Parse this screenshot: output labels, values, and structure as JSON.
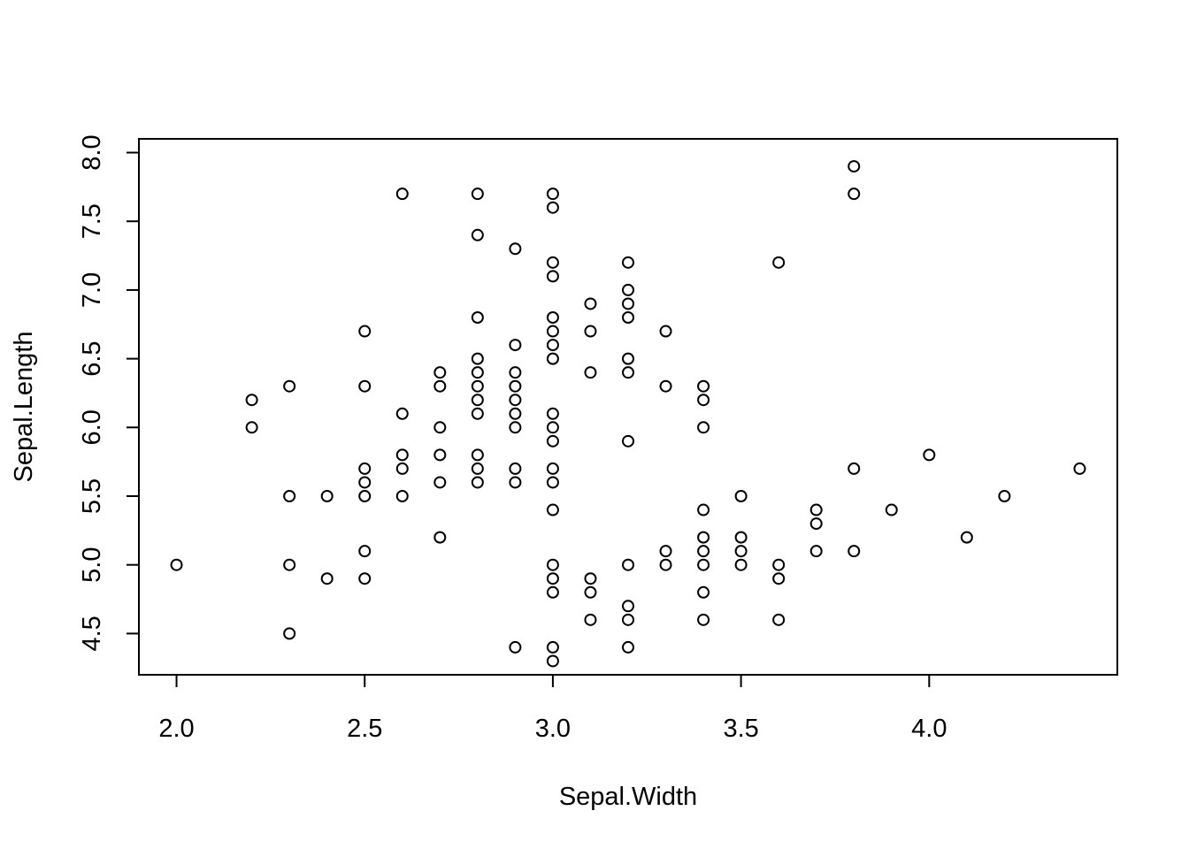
{
  "chart_data": {
    "type": "scatter",
    "title": "",
    "xlabel": "Sepal.Width",
    "ylabel": "Sepal.Length",
    "xlim": [
      1.9,
      4.5
    ],
    "ylim": [
      4.2,
      8.1
    ],
    "x_ticks": [
      "2.0",
      "2.5",
      "3.0",
      "3.5",
      "4.0"
    ],
    "y_ticks": [
      "4.5",
      "5.0",
      "5.5",
      "6.0",
      "6.5",
      "7.0",
      "7.5",
      "8.0"
    ],
    "grid": false,
    "marker": "open-circle",
    "color": "#000000",
    "points": [
      [
        2.0,
        5.0
      ],
      [
        2.2,
        6.2
      ],
      [
        2.2,
        6.0
      ],
      [
        2.3,
        6.3
      ],
      [
        2.3,
        5.5
      ],
      [
        2.3,
        5.0
      ],
      [
        2.3,
        4.5
      ],
      [
        2.4,
        5.5
      ],
      [
        2.4,
        4.9
      ],
      [
        2.5,
        6.7
      ],
      [
        2.5,
        6.3
      ],
      [
        2.5,
        5.7
      ],
      [
        2.5,
        5.6
      ],
      [
        2.5,
        5.5
      ],
      [
        2.5,
        5.1
      ],
      [
        2.5,
        4.9
      ],
      [
        2.6,
        7.7
      ],
      [
        2.6,
        6.1
      ],
      [
        2.6,
        5.8
      ],
      [
        2.6,
        5.7
      ],
      [
        2.6,
        5.5
      ],
      [
        2.7,
        6.4
      ],
      [
        2.7,
        6.3
      ],
      [
        2.7,
        6.0
      ],
      [
        2.7,
        5.8
      ],
      [
        2.7,
        5.6
      ],
      [
        2.7,
        5.2
      ],
      [
        2.8,
        7.7
      ],
      [
        2.8,
        7.4
      ],
      [
        2.8,
        6.8
      ],
      [
        2.8,
        6.5
      ],
      [
        2.8,
        6.4
      ],
      [
        2.8,
        6.3
      ],
      [
        2.8,
        6.2
      ],
      [
        2.8,
        6.1
      ],
      [
        2.8,
        5.8
      ],
      [
        2.8,
        5.7
      ],
      [
        2.8,
        5.6
      ],
      [
        2.9,
        7.3
      ],
      [
        2.9,
        6.6
      ],
      [
        2.9,
        6.4
      ],
      [
        2.9,
        6.3
      ],
      [
        2.9,
        6.2
      ],
      [
        2.9,
        6.1
      ],
      [
        2.9,
        6.0
      ],
      [
        2.9,
        5.7
      ],
      [
        2.9,
        5.6
      ],
      [
        2.9,
        4.4
      ],
      [
        3.0,
        7.7
      ],
      [
        3.0,
        7.6
      ],
      [
        3.0,
        7.2
      ],
      [
        3.0,
        7.1
      ],
      [
        3.0,
        6.8
      ],
      [
        3.0,
        6.7
      ],
      [
        3.0,
        6.6
      ],
      [
        3.0,
        6.5
      ],
      [
        3.0,
        6.1
      ],
      [
        3.0,
        6.0
      ],
      [
        3.0,
        5.9
      ],
      [
        3.0,
        5.7
      ],
      [
        3.0,
        5.6
      ],
      [
        3.0,
        5.4
      ],
      [
        3.0,
        5.0
      ],
      [
        3.0,
        4.9
      ],
      [
        3.0,
        4.8
      ],
      [
        3.0,
        4.4
      ],
      [
        3.0,
        4.3
      ],
      [
        3.1,
        6.9
      ],
      [
        3.1,
        6.7
      ],
      [
        3.1,
        6.4
      ],
      [
        3.1,
        4.9
      ],
      [
        3.1,
        4.8
      ],
      [
        3.1,
        4.6
      ],
      [
        3.2,
        7.2
      ],
      [
        3.2,
        7.0
      ],
      [
        3.2,
        6.9
      ],
      [
        3.2,
        6.8
      ],
      [
        3.2,
        6.5
      ],
      [
        3.2,
        6.4
      ],
      [
        3.2,
        5.9
      ],
      [
        3.2,
        5.0
      ],
      [
        3.2,
        4.7
      ],
      [
        3.2,
        4.6
      ],
      [
        3.2,
        4.4
      ],
      [
        3.3,
        6.7
      ],
      [
        3.3,
        6.3
      ],
      [
        3.3,
        5.1
      ],
      [
        3.3,
        5.0
      ],
      [
        3.4,
        6.3
      ],
      [
        3.4,
        6.2
      ],
      [
        3.4,
        6.0
      ],
      [
        3.4,
        5.4
      ],
      [
        3.4,
        5.2
      ],
      [
        3.4,
        5.1
      ],
      [
        3.4,
        5.0
      ],
      [
        3.4,
        4.8
      ],
      [
        3.4,
        4.6
      ],
      [
        3.5,
        5.5
      ],
      [
        3.5,
        5.2
      ],
      [
        3.5,
        5.1
      ],
      [
        3.5,
        5.0
      ],
      [
        3.6,
        7.2
      ],
      [
        3.6,
        5.0
      ],
      [
        3.6,
        4.9
      ],
      [
        3.6,
        4.6
      ],
      [
        3.7,
        5.4
      ],
      [
        3.7,
        5.3
      ],
      [
        3.7,
        5.1
      ],
      [
        3.8,
        7.9
      ],
      [
        3.8,
        7.7
      ],
      [
        3.8,
        5.7
      ],
      [
        3.8,
        5.1
      ],
      [
        3.9,
        5.4
      ],
      [
        4.0,
        5.8
      ],
      [
        4.1,
        5.2
      ],
      [
        4.2,
        5.5
      ],
      [
        4.4,
        5.7
      ]
    ]
  }
}
